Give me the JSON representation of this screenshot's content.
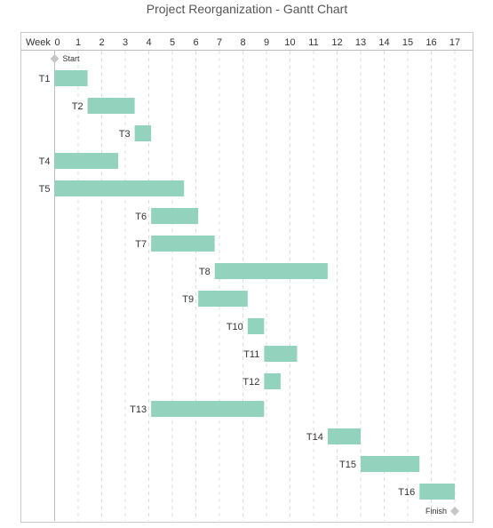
{
  "chart_data": {
    "type": "gantt",
    "title": "Project Reorganization - Gantt Chart",
    "xlabel": "Week",
    "x_ticks": [
      0,
      1,
      2,
      3,
      4,
      5,
      6,
      7,
      8,
      9,
      10,
      11,
      12,
      13,
      14,
      15,
      16,
      17
    ],
    "xlim": [
      0,
      17
    ],
    "grid": true,
    "colors": {
      "bar": "#93d3bd",
      "milestone": "#c6c6c6",
      "text": "#333333"
    },
    "milestones": [
      {
        "name": "Start",
        "week": 0
      },
      {
        "name": "Finish",
        "week": 17
      }
    ],
    "tasks": [
      {
        "name": "T1",
        "start": 0,
        "end": 1.4
      },
      {
        "name": "T2",
        "start": 1.4,
        "end": 3.4
      },
      {
        "name": "T3",
        "start": 3.4,
        "end": 4.1
      },
      {
        "name": "T4",
        "start": 0,
        "end": 2.7
      },
      {
        "name": "T5",
        "start": 0,
        "end": 5.5
      },
      {
        "name": "T6",
        "start": 4.1,
        "end": 6.1
      },
      {
        "name": "T7",
        "start": 4.1,
        "end": 6.8
      },
      {
        "name": "T8",
        "start": 6.8,
        "end": 11.6
      },
      {
        "name": "T9",
        "start": 6.1,
        "end": 8.2
      },
      {
        "name": "T10",
        "start": 8.2,
        "end": 8.9
      },
      {
        "name": "T11",
        "start": 8.9,
        "end": 10.3
      },
      {
        "name": "T12",
        "start": 8.9,
        "end": 9.6
      },
      {
        "name": "T13",
        "start": 4.1,
        "end": 8.9
      },
      {
        "name": "T14",
        "start": 11.6,
        "end": 13
      },
      {
        "name": "T15",
        "start": 13,
        "end": 15.5
      },
      {
        "name": "T16",
        "start": 15.5,
        "end": 17
      }
    ]
  }
}
